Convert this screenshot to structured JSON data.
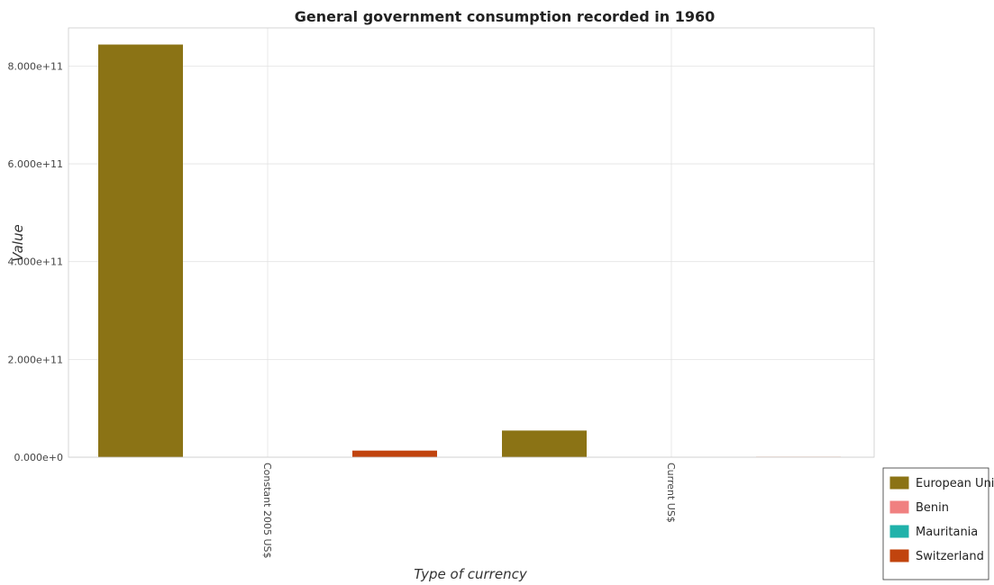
{
  "chart_data": {
    "type": "bar",
    "title": "General government consumption recorded in 1960",
    "xlabel": "Type of currency",
    "ylabel": "Value",
    "categories": [
      "Constant 2005 US$",
      "Current US$"
    ],
    "series": [
      {
        "name": "European Union",
        "color": "#8B7315",
        "values": [
          844000000000,
          54500000000
        ]
      },
      {
        "name": "Benin",
        "color": "#F08080",
        "values": [
          0,
          0
        ]
      },
      {
        "name": "Mauritania",
        "color": "#20B2AA",
        "values": [
          0,
          0
        ]
      },
      {
        "name": "Switzerland",
        "color": "#C1440E",
        "values": [
          13500000000,
          800000000
        ]
      }
    ],
    "ylim": [
      0,
      900000000000
    ],
    "yticks": [
      0,
      200000000000,
      400000000000,
      600000000000,
      800000000000
    ],
    "ytick_labels": [
      "0.000e+0",
      "2.000e+11",
      "4.000e+11",
      "6.000e+11",
      "8.000e+11"
    ],
    "grid": true,
    "legend_position": "bottom-right"
  }
}
